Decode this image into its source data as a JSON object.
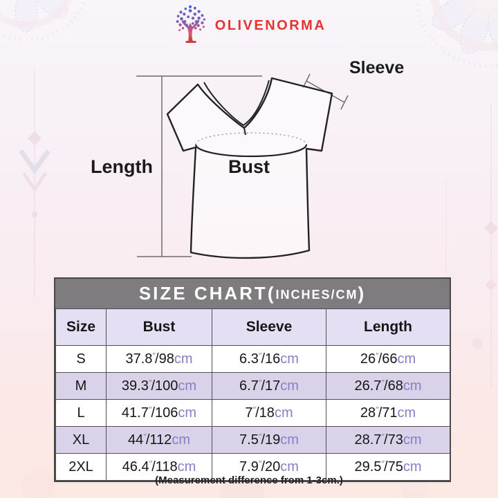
{
  "brand": {
    "name": "OLIVENORMA",
    "logo_icon": "tree-of-life-icon",
    "text_color": "#e5332e"
  },
  "diagram": {
    "sleeve_label": "Sleeve",
    "length_label": "Length",
    "bust_label": "Bust"
  },
  "size_chart": {
    "title": {
      "main": "SIZE CHART(",
      "sub": "INCHES/CM",
      "close": ")"
    },
    "columns": [
      "Size",
      "Bust",
      "Sleeve",
      "Length"
    ],
    "unit_inch_mark": "″",
    "unit_cm": "cm",
    "separator": "/",
    "rows": [
      {
        "size": "S",
        "bust": {
          "in": "37.8",
          "cm": "98"
        },
        "sleeve": {
          "in": "6.3",
          "cm": "16"
        },
        "length": {
          "in": "26",
          "cm": "66"
        }
      },
      {
        "size": "M",
        "bust": {
          "in": "39.3",
          "cm": "100"
        },
        "sleeve": {
          "in": "6.7",
          "cm": "17"
        },
        "length": {
          "in": "26.7",
          "cm": "68"
        }
      },
      {
        "size": "L",
        "bust": {
          "in": "41.7",
          "cm": "106"
        },
        "sleeve": {
          "in": "7",
          "cm": "18"
        },
        "length": {
          "in": "28",
          "cm": "71"
        }
      },
      {
        "size": "XL",
        "bust": {
          "in": "44",
          "cm": "112"
        },
        "sleeve": {
          "in": "7.5",
          "cm": "19"
        },
        "length": {
          "in": "28.7",
          "cm": "73"
        }
      },
      {
        "size": "2XL",
        "bust": {
          "in": "46.4",
          "cm": "118"
        },
        "sleeve": {
          "in": "7.9",
          "cm": "20"
        },
        "length": {
          "in": "29.5",
          "cm": "75"
        }
      }
    ]
  },
  "footnote": "(Measurement difference from 1-3cm.)",
  "colors": {
    "title_bar_bg": "#7e7c7e",
    "title_bar_text": "#ffffff",
    "header_row_bg": "#e4dff2",
    "alt_row_bg": "#d9d2e9",
    "unit_purple": "#8b7cc8",
    "brand_red": "#e5332e",
    "text_black": "#161616"
  }
}
